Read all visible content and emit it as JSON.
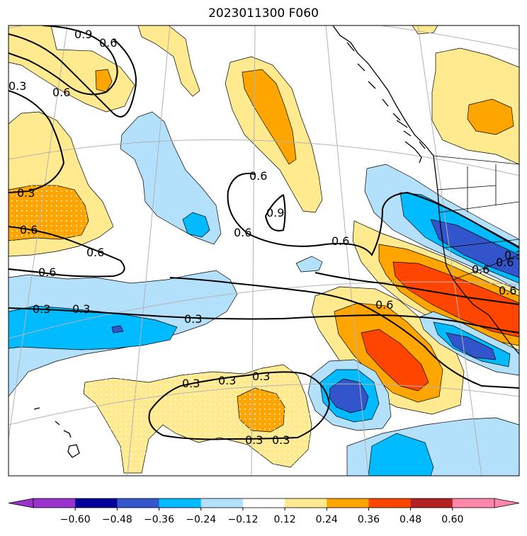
{
  "title": "2023011300 F060",
  "colors": {
    "neg_060": "#9933cc",
    "neg_048": "#000099",
    "neg_036": "#3355cc",
    "neg_024": "#00bbff",
    "neg_012": "#b3e0fb",
    "neutral": "#ffffff",
    "pos_012": "#ffea8f",
    "pos_024": "#ffa500",
    "pos_036": "#ff4500",
    "pos_048": "#b22222",
    "pos_060": "#ff88aa",
    "coast": "#000000",
    "graticule": "#b3b3b3",
    "contour": "#000000"
  },
  "colorbar": {
    "ticks": [
      "−0.60",
      "−0.48",
      "−0.36",
      "−0.24",
      "−0.12",
      "0.12",
      "0.24",
      "0.36",
      "0.48",
      "0.60"
    ]
  },
  "contour_labels": [
    "0.9",
    "0.6",
    "0.6",
    "0.3",
    "0.6",
    "0.3",
    "0.6",
    "0.6",
    "0.6",
    "0.3",
    "0.3",
    "0.3",
    "0.6",
    "0.9",
    "0.6",
    "0.6",
    "0.6",
    "0.6",
    "0.6",
    "0.3",
    "0.3",
    "0.3",
    "0.3",
    "0.3",
    "0.3"
  ]
}
